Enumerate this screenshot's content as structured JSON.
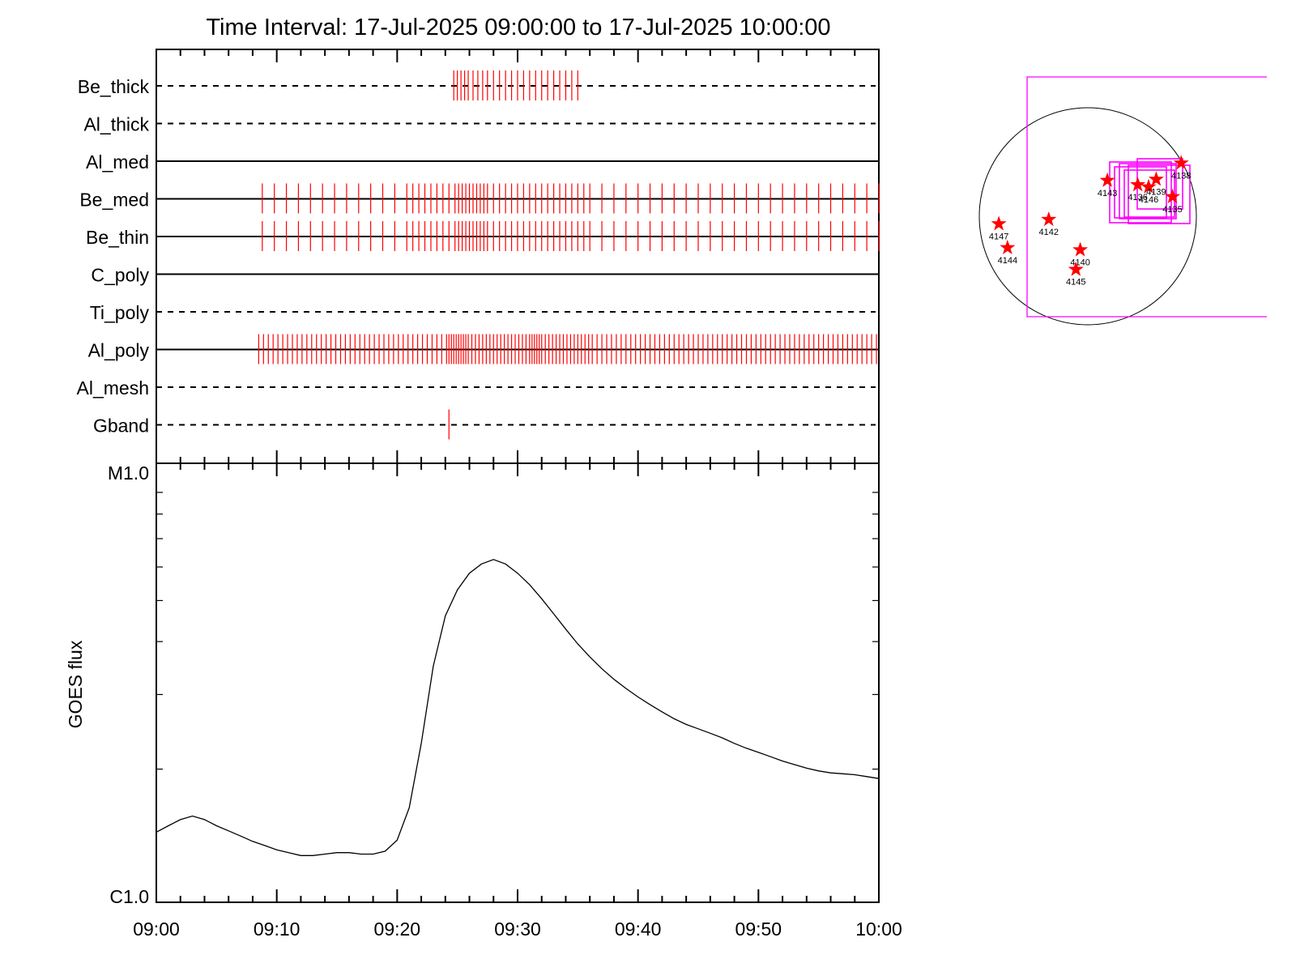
{
  "title": "Time Interval: 17-Jul-2025 09:00:00 to 17-Jul-2025 10:00:00",
  "colors": {
    "axis": "#000000",
    "event": "#ff0000",
    "fov": "#ff00ff",
    "star": "#ff0000"
  },
  "chart_data": [
    {
      "type": "timeline",
      "x_range": [
        "09:00",
        "10:00"
      ],
      "rows": [
        {
          "label": "Be_thick",
          "line": "dashed",
          "events": [
            24.7,
            25.0,
            25.3,
            25.6,
            25.9,
            26.3,
            26.7,
            27.1,
            27.5,
            28.0,
            28.5,
            29.0,
            29.5,
            30.0,
            30.5,
            31.0,
            31.5,
            32.0,
            32.5,
            33.0,
            33.5,
            34.0,
            34.5,
            35.0
          ]
        },
        {
          "label": "Al_thick",
          "line": "dashed",
          "events": []
        },
        {
          "label": "Al_med",
          "line": "solid",
          "events": []
        },
        {
          "label": "Be_med",
          "line": "solid",
          "events": [
            8.8,
            9.8,
            10.8,
            11.8,
            12.8,
            13.8,
            14.8,
            15.8,
            16.8,
            17.8,
            18.8,
            19.8,
            20.8,
            21.3,
            21.8,
            22.3,
            22.8,
            23.3,
            23.8,
            24.3,
            24.8,
            25.1,
            25.4,
            25.7,
            26.0,
            26.3,
            26.6,
            26.9,
            27.2,
            27.5,
            28.0,
            28.5,
            29.0,
            29.5,
            30.0,
            30.5,
            31.0,
            31.5,
            32.0,
            32.5,
            33.0,
            33.5,
            34.0,
            34.5,
            35.0,
            35.5,
            36.0,
            37.0,
            38.0,
            39.0,
            40.0,
            41.0,
            42.0,
            43.0,
            44.0,
            45.0,
            46.0,
            47.0,
            48.0,
            49.0,
            50.0,
            51.0,
            52.0,
            53.0,
            54.0,
            55.0,
            56.0,
            57.0,
            58.0,
            59.0,
            60.0
          ]
        },
        {
          "label": "Be_thin",
          "line": "solid",
          "events": [
            8.8,
            9.8,
            10.8,
            11.8,
            12.8,
            13.8,
            14.8,
            15.8,
            16.8,
            17.8,
            18.8,
            19.8,
            20.8,
            21.3,
            21.8,
            22.3,
            22.8,
            23.3,
            23.8,
            24.3,
            24.8,
            25.1,
            25.4,
            25.7,
            26.0,
            26.3,
            26.6,
            26.9,
            27.2,
            27.5,
            28.0,
            28.5,
            29.0,
            29.5,
            30.0,
            30.5,
            31.0,
            31.5,
            32.0,
            32.5,
            33.0,
            33.5,
            34.0,
            34.5,
            35.0,
            35.5,
            36.0,
            37.0,
            38.0,
            39.0,
            40.0,
            41.0,
            42.0,
            43.0,
            44.0,
            45.0,
            46.0,
            47.0,
            48.0,
            49.0,
            50.0,
            51.0,
            52.0,
            53.0,
            54.0,
            55.0,
            56.0,
            57.0,
            58.0,
            59.0,
            60.0
          ]
        },
        {
          "label": "C_poly",
          "line": "solid",
          "events": []
        },
        {
          "label": "Ti_poly",
          "line": "dashed",
          "events": []
        },
        {
          "label": "Al_poly",
          "line": "solid",
          "events": [
            8.5,
            8.9,
            9.3,
            9.7,
            10.1,
            10.5,
            10.9,
            11.3,
            11.7,
            12.1,
            12.5,
            12.9,
            13.3,
            13.7,
            14.1,
            14.5,
            14.9,
            15.3,
            15.7,
            16.1,
            16.5,
            16.9,
            17.3,
            17.7,
            18.1,
            18.5,
            18.9,
            19.3,
            19.7,
            20.1,
            20.5,
            20.9,
            21.3,
            21.7,
            22.1,
            22.5,
            22.9,
            23.3,
            23.7,
            24.1,
            24.3,
            24.5,
            24.7,
            24.9,
            25.1,
            25.3,
            25.5,
            25.7,
            25.9,
            26.2,
            26.5,
            26.8,
            27.1,
            27.4,
            27.7,
            28.0,
            28.3,
            28.6,
            28.9,
            29.2,
            29.5,
            29.8,
            30.1,
            30.4,
            30.7,
            31.0,
            31.2,
            31.4,
            31.6,
            31.8,
            32.0,
            32.3,
            32.6,
            32.9,
            33.2,
            33.5,
            33.8,
            34.1,
            34.4,
            34.7,
            35.0,
            35.3,
            35.6,
            35.9,
            36.2,
            36.6,
            37.0,
            37.4,
            37.8,
            38.2,
            38.6,
            39.0,
            39.4,
            39.8,
            40.2,
            40.6,
            41.0,
            41.4,
            41.8,
            42.2,
            42.6,
            43.0,
            43.4,
            43.8,
            44.2,
            44.6,
            45.0,
            45.4,
            45.8,
            46.2,
            46.6,
            47.0,
            47.4,
            47.8,
            48.2,
            48.6,
            49.0,
            49.4,
            49.8,
            50.2,
            50.6,
            51.0,
            51.4,
            51.8,
            52.2,
            52.6,
            53.0,
            53.4,
            53.8,
            54.2,
            54.6,
            55.0,
            55.4,
            55.8,
            56.2,
            56.6,
            57.0,
            57.4,
            57.8,
            58.2,
            58.6,
            59.0,
            59.4,
            59.8
          ]
        },
        {
          "label": "Al_mesh",
          "line": "dashed",
          "events": []
        },
        {
          "label": "Gband",
          "line": "dashed",
          "events": [
            24.3
          ]
        }
      ]
    },
    {
      "type": "line",
      "ylabel": "GOES flux",
      "yscale": "log",
      "ytick_labels": [
        "M1.0",
        "C1.0"
      ],
      "ylim": [
        1e-06,
        1e-05
      ],
      "xlim": [
        "09:00",
        "10:00"
      ],
      "xtick_labels": [
        "09:00",
        "09:10",
        "09:20",
        "09:30",
        "09:40",
        "09:50",
        "10:00"
      ],
      "series": [
        {
          "x_minutes": [
            0,
            1,
            2,
            3,
            4,
            5,
            6,
            7,
            8,
            9,
            10,
            11,
            12,
            13,
            14,
            15,
            16,
            17,
            18,
            19,
            20,
            21,
            22,
            23,
            24,
            25,
            26,
            27,
            28,
            29,
            30,
            31,
            32,
            33,
            34,
            35,
            36,
            37,
            38,
            39,
            40,
            41,
            42,
            43,
            44,
            45,
            46,
            47,
            48,
            49,
            50,
            51,
            52,
            53,
            54,
            55,
            56,
            57,
            58,
            59,
            60
          ],
          "y": [
            1.42e-06,
            1.47e-06,
            1.52e-06,
            1.55e-06,
            1.52e-06,
            1.47e-06,
            1.43e-06,
            1.39e-06,
            1.35e-06,
            1.32e-06,
            1.29e-06,
            1.27e-06,
            1.25e-06,
            1.25e-06,
            1.26e-06,
            1.27e-06,
            1.27e-06,
            1.26e-06,
            1.26e-06,
            1.28e-06,
            1.36e-06,
            1.62e-06,
            2.3e-06,
            3.5e-06,
            4.6e-06,
            5.3e-06,
            5.8e-06,
            6.1e-06,
            6.25e-06,
            6.1e-06,
            5.8e-06,
            5.45e-06,
            5.05e-06,
            4.65e-06,
            4.28e-06,
            3.95e-06,
            3.68e-06,
            3.45e-06,
            3.26e-06,
            3.1e-06,
            2.96e-06,
            2.84e-06,
            2.73e-06,
            2.63e-06,
            2.55e-06,
            2.49e-06,
            2.43e-06,
            2.37e-06,
            2.3e-06,
            2.24e-06,
            2.19e-06,
            2.14e-06,
            2.09e-06,
            2.05e-06,
            2.01e-06,
            1.98e-06,
            1.96e-06,
            1.95e-06,
            1.94e-06,
            1.92e-06,
            1.9e-06
          ]
        }
      ]
    }
  ],
  "sun_map": {
    "markers": [
      {
        "label": "4147",
        "x": -0.82,
        "y": -0.07
      },
      {
        "label": "4142",
        "x": -0.36,
        "y": -0.03
      },
      {
        "label": "4144",
        "x": -0.74,
        "y": -0.29
      },
      {
        "label": "4140",
        "x": -0.07,
        "y": -0.31
      },
      {
        "label": "4145",
        "x": -0.11,
        "y": -0.49
      },
      {
        "label": "4143",
        "x": 0.18,
        "y": 0.33
      },
      {
        "label": "4136",
        "x": 0.46,
        "y": 0.29
      },
      {
        "label": "4146",
        "x": 0.56,
        "y": 0.27
      },
      {
        "label": "4139",
        "x": 0.63,
        "y": 0.34
      },
      {
        "label": "4138",
        "x": 0.86,
        "y": 0.49
      },
      {
        "label": "4135",
        "x": 0.78,
        "y": 0.18
      }
    ]
  }
}
